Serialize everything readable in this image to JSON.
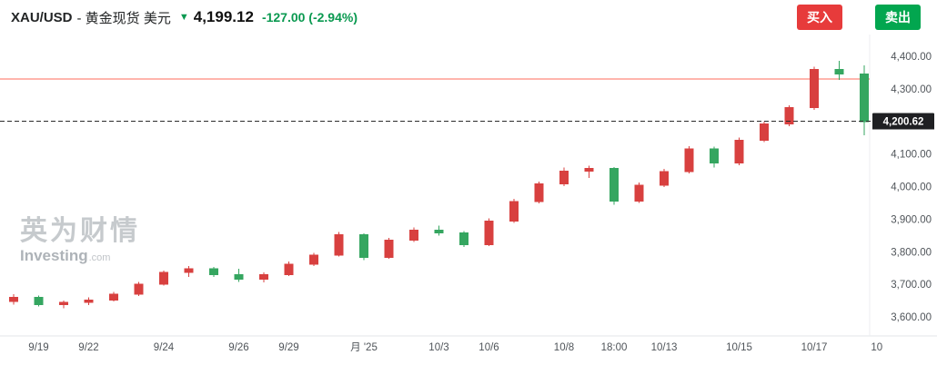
{
  "header": {
    "symbol": "XAU/USD",
    "name_suffix": "- 黄金现货 美元",
    "direction_icon_glyph": "▼",
    "price": "4,199.12",
    "change": "-127.00 (-2.94%)",
    "buy_label": "买入",
    "sell_label": "卖出",
    "colors": {
      "buy_bg": "#e73b3b",
      "sell_bg": "#02a64f",
      "change_text": "#0a9950"
    }
  },
  "watermark": {
    "brand_cn": "英为财情",
    "brand_en": "Investing",
    "brand_tld": ".com"
  },
  "chart_data": {
    "type": "candlestick",
    "instrument": "XAU/USD 黄金现货 美元",
    "columns": [
      "open",
      "high",
      "low",
      "close"
    ],
    "up_color": "#d8403f",
    "down_color": "#35a660",
    "grid": false,
    "y_axis": {
      "min": 3600,
      "max": 4400,
      "tick_step": 100,
      "ticks": [
        {
          "value": 4400,
          "label": "4,400.00"
        },
        {
          "value": 4300,
          "label": "4,300.00"
        },
        {
          "value": 4200,
          "label": "4,200.00"
        },
        {
          "value": 4100,
          "label": "4,100.00"
        },
        {
          "value": 4000,
          "label": "4,000.00"
        },
        {
          "value": 3900,
          "label": "3,900.00"
        },
        {
          "value": 3800,
          "label": "3,800.00"
        },
        {
          "value": 3700,
          "label": "3,700.00"
        },
        {
          "value": 3600,
          "label": "3,600.00"
        }
      ]
    },
    "x_ticks": [
      {
        "label": "9/19",
        "index": 1
      },
      {
        "label": "9/22",
        "index": 3
      },
      {
        "label": "9/24",
        "index": 6
      },
      {
        "label": "9/26",
        "index": 9
      },
      {
        "label": "9/29",
        "index": 11
      },
      {
        "label": "月 '25",
        "index": 14
      },
      {
        "label": "10/3",
        "index": 17
      },
      {
        "label": "10/6",
        "index": 19
      },
      {
        "label": "10/8",
        "index": 22
      },
      {
        "label": "18:00",
        "index": 24
      },
      {
        "label": "10/13",
        "index": 26
      },
      {
        "label": "10/15",
        "index": 29
      },
      {
        "label": "10/17",
        "index": 32
      },
      {
        "label": "10",
        "index": 34.5
      }
    ],
    "candles": [
      [
        3648,
        3670,
        3638,
        3660
      ],
      [
        3660,
        3666,
        3632,
        3638
      ],
      [
        3638,
        3650,
        3626,
        3645
      ],
      [
        3645,
        3660,
        3636,
        3652
      ],
      [
        3652,
        3676,
        3648,
        3670
      ],
      [
        3670,
        3708,
        3664,
        3700
      ],
      [
        3700,
        3742,
        3696,
        3736
      ],
      [
        3736,
        3756,
        3722,
        3748
      ],
      [
        3748,
        3754,
        3722,
        3730
      ],
      [
        3730,
        3748,
        3708,
        3716
      ],
      [
        3716,
        3736,
        3706,
        3730
      ],
      [
        3730,
        3770,
        3726,
        3762
      ],
      [
        3762,
        3796,
        3756,
        3790
      ],
      [
        3790,
        3860,
        3786,
        3852
      ],
      [
        3852,
        3856,
        3774,
        3782
      ],
      [
        3782,
        3842,
        3778,
        3836
      ],
      [
        3836,
        3874,
        3830,
        3866
      ],
      [
        3866,
        3880,
        3850,
        3858
      ],
      [
        3858,
        3864,
        3814,
        3822
      ],
      [
        3822,
        3902,
        3818,
        3894
      ],
      [
        3894,
        3962,
        3888,
        3954
      ],
      [
        3954,
        4016,
        3948,
        4008
      ],
      [
        4008,
        4058,
        4002,
        4048
      ],
      [
        4048,
        4064,
        4026,
        4056
      ],
      [
        4056,
        4060,
        3944,
        3956
      ],
      [
        3956,
        4012,
        3950,
        4004
      ],
      [
        4004,
        4054,
        3998,
        4046
      ],
      [
        4046,
        4124,
        4040,
        4116
      ],
      [
        4116,
        4122,
        4058,
        4072
      ],
      [
        4072,
        4150,
        4066,
        4142
      ],
      [
        4142,
        4200,
        4136,
        4192
      ],
      [
        4192,
        4250,
        4186,
        4242
      ],
      [
        4242,
        4368,
        4236,
        4360
      ],
      [
        4360,
        4386,
        4328,
        4346
      ],
      [
        4346,
        4372,
        4158,
        4199.12
      ]
    ],
    "alert_line": {
      "value": 4330,
      "color": "#ff6b5b"
    },
    "last_price_line": {
      "value": 4200.62,
      "label": "4,200.62",
      "box_color": "#1f2023"
    }
  }
}
